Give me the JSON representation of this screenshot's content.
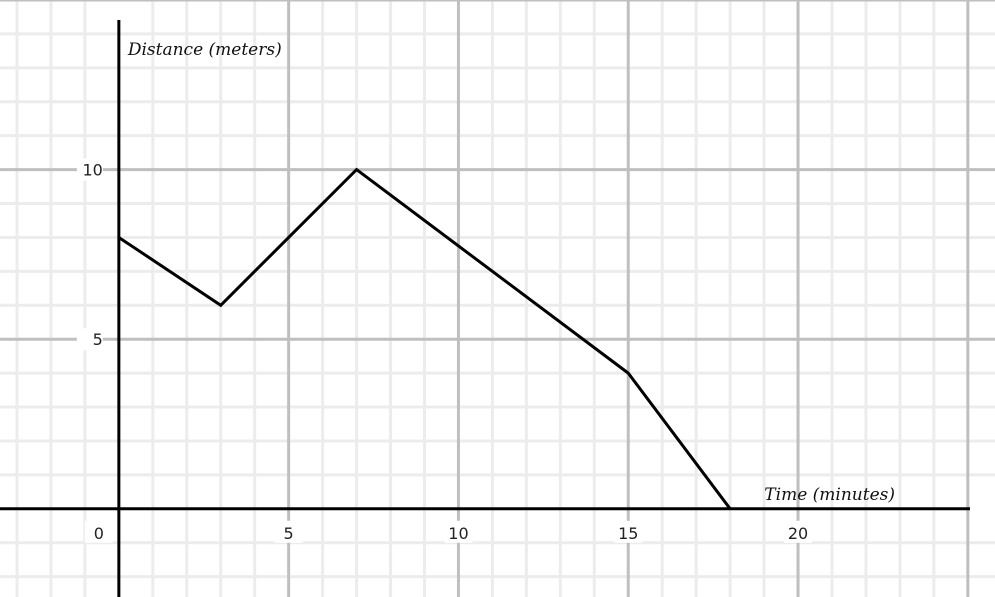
{
  "chart_data": {
    "type": "line",
    "xlabel": "Time (minutes)",
    "ylabel": "Distance (meters)",
    "xlim": [
      -3.5,
      25.8
    ],
    "ylim": [
      -2.6,
      15
    ],
    "grid": true,
    "grid_minor_step": 1,
    "grid_major_step": 5,
    "x_ticks": [
      0,
      5,
      10,
      15,
      20
    ],
    "y_ticks": [
      5,
      10
    ],
    "x_tick_labels": [
      "0",
      "5",
      "10",
      "15",
      "20"
    ],
    "y_tick_labels": [
      "5",
      "10"
    ],
    "series": [
      {
        "x": [
          0,
          3,
          7,
          15,
          18
        ],
        "y": [
          8,
          6,
          10,
          4,
          0
        ],
        "color": "#000000"
      }
    ],
    "colors": {
      "minor_grid": "#ececec",
      "major_grid": "#bfbfbf",
      "axis": "#000000"
    }
  }
}
